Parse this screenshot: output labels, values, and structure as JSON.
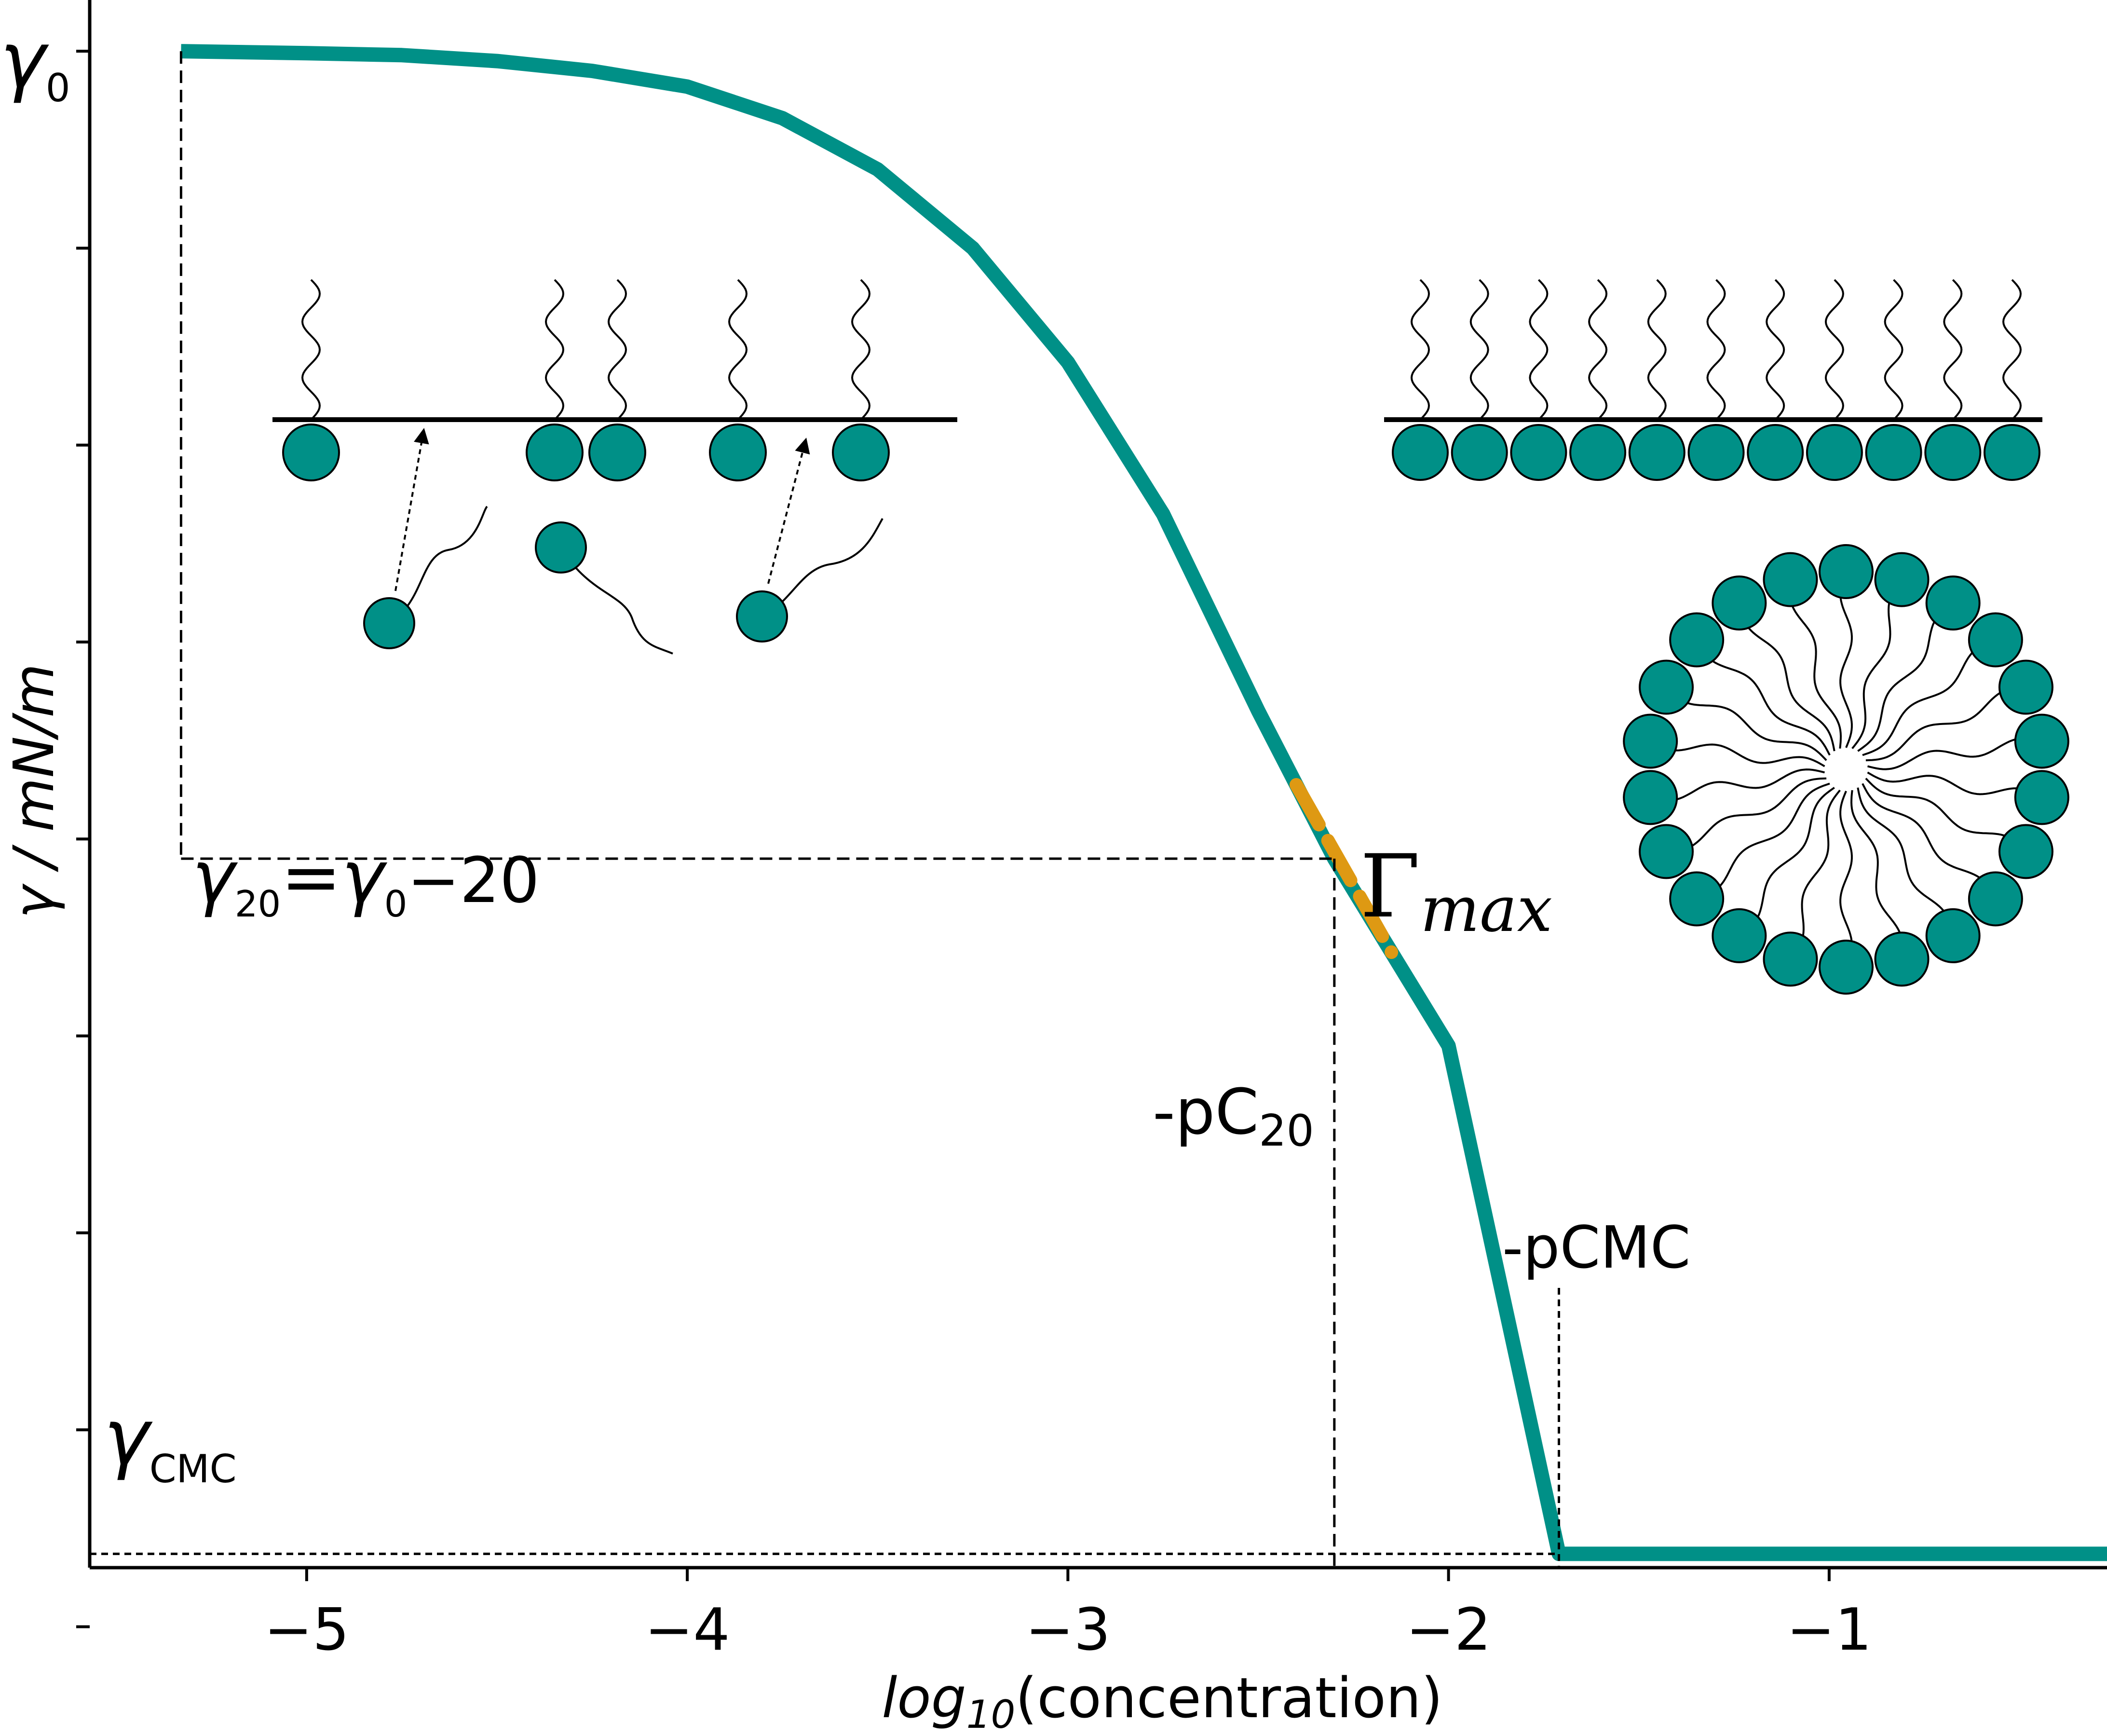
{
  "chart_data": {
    "type": "line",
    "title": "",
    "xlabel": {
      "pre": "log",
      "sub": "10",
      "post": "(concentration)"
    },
    "ylabel": "γ / mN/m",
    "xlim": [
      -5.57,
      -0.27
    ],
    "ylim": [
      1.3,
      9.26
    ],
    "x_ticks": [
      -5,
      -4,
      -3,
      -2,
      -1
    ],
    "x_tick_labels": [
      "−5",
      "−4",
      "−3",
      "−2",
      "−1"
    ],
    "y_ticks": [
      1,
      2,
      3,
      4,
      5,
      6,
      7,
      8,
      9
    ],
    "grid": false,
    "series": [
      {
        "color": "#009087",
        "x": [
          -5.33,
          -5.0,
          -4.75,
          -4.5,
          -4.25,
          -4.0,
          -3.75,
          -3.5,
          -3.25,
          -3.0,
          -2.75,
          -2.5,
          -2.3,
          -2.0,
          -1.71,
          -1.71,
          -1.0,
          -0.27
        ],
        "y": [
          9.0,
          8.99,
          8.98,
          8.95,
          8.9,
          8.82,
          8.66,
          8.4,
          8.0,
          7.42,
          6.65,
          5.65,
          4.9,
          3.95,
          1.37,
          1.37,
          1.37,
          1.37
        ]
      }
    ],
    "highlight": {
      "color": "#DE9913",
      "x": [
        -2.4,
        -2.15
      ]
    },
    "reference_lines": {
      "gamma0_x": -5.33,
      "gamma20_y": 4.9,
      "pc20_x": -2.3,
      "cmc_x": -1.71,
      "gammacmc_y": 1.37
    },
    "annotations": {
      "gamma0": {
        "symbol": "γ",
        "sub": "0"
      },
      "gamma20": {
        "symbol": "γ",
        "sub": "20",
        "eq": "=",
        "symbol2": "γ",
        "sub2": "0",
        "rest": "−20"
      },
      "gamma_max": {
        "symbol": "Γ",
        "sub": "max"
      },
      "pc20": {
        "pre": "-pC",
        "sub": "20"
      },
      "pcmc": "-pCMC",
      "gamma_cmc": {
        "symbol": "γ",
        "sub": "CMC"
      }
    },
    "colors": {
      "teal": "#009087",
      "orange": "#DE9913",
      "ink": "#000000"
    }
  }
}
